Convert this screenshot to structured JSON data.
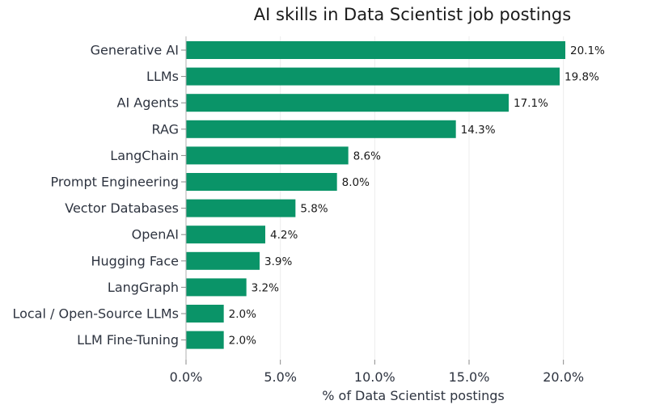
{
  "chart_data": {
    "type": "bar",
    "orientation": "horizontal",
    "title": "AI skills in Data Scientist job postings",
    "xlabel": "% of Data Scientist postings",
    "ylabel": "",
    "categories": [
      "Generative AI",
      "LLMs",
      "AI Agents",
      "RAG",
      "LangChain",
      "Prompt Engineering",
      "Vector Databases",
      "OpenAI",
      "Hugging Face",
      "LangGraph",
      "Local / Open-Source LLMs",
      "LLM Fine-Tuning"
    ],
    "values": [
      20.1,
      19.8,
      17.1,
      14.3,
      8.6,
      8.0,
      5.8,
      4.2,
      3.9,
      3.2,
      2.0,
      2.0
    ],
    "data_labels": [
      "20.1%",
      "19.8%",
      "17.1%",
      "14.3%",
      "8.6%",
      "8.0%",
      "5.8%",
      "4.2%",
      "3.9%",
      "3.2%",
      "2.0%",
      "2.0%"
    ],
    "x_ticks": [
      0,
      5,
      10,
      15,
      20
    ],
    "x_tick_labels": [
      "0.0%",
      "5.0%",
      "10.0%",
      "15.0%",
      "20.0%"
    ],
    "xlim": [
      0,
      24
    ],
    "grid": "x",
    "legend": "none",
    "colors": {
      "bar": "#0a9468",
      "text": "#2e3440",
      "grid": "#ececec"
    }
  }
}
